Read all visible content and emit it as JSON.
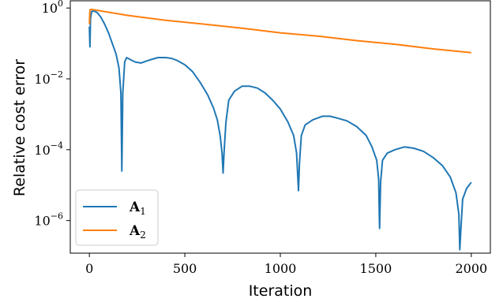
{
  "chart_data": {
    "type": "line",
    "title": "",
    "xlabel": "Iteration",
    "ylabel": "Relative cost error",
    "x_scale": "linear",
    "y_scale": "log",
    "xlim": [
      -100,
      2100
    ],
    "ylim": [
      1.2e-07,
      1.6
    ],
    "x_ticks": [
      0,
      500,
      1000,
      1500,
      2000
    ],
    "x_tick_labels": [
      "0",
      "500",
      "1000",
      "1500",
      "2000"
    ],
    "y_ticks": [
      1,
      0.01,
      0.0001,
      1e-06
    ],
    "y_tick_labels": [
      {
        "base": "10",
        "exp": "0"
      },
      {
        "base": "10",
        "exp": "−2"
      },
      {
        "base": "10",
        "exp": "−4"
      },
      {
        "base": "10",
        "exp": "−6"
      }
    ],
    "grid": false,
    "legend_position": "lower-left",
    "series": [
      {
        "name": "A",
        "subscript": "1",
        "color": "#1f77b4",
        "points": [
          [
            0,
            0.3
          ],
          [
            3,
            0.08
          ],
          [
            6,
            0.5
          ],
          [
            12,
            0.8
          ],
          [
            25,
            0.82
          ],
          [
            40,
            0.75
          ],
          [
            60,
            0.55
          ],
          [
            80,
            0.35
          ],
          [
            100,
            0.2
          ],
          [
            120,
            0.1
          ],
          [
            140,
            0.05
          ],
          [
            155,
            0.02
          ],
          [
            165,
            0.004
          ],
          [
            170,
            2.5e-05
          ],
          [
            175,
            0.004
          ],
          [
            185,
            0.03
          ],
          [
            195,
            0.04
          ],
          [
            215,
            0.035
          ],
          [
            240,
            0.03
          ],
          [
            270,
            0.028
          ],
          [
            300,
            0.032
          ],
          [
            330,
            0.036
          ],
          [
            360,
            0.04
          ],
          [
            400,
            0.04
          ],
          [
            430,
            0.038
          ],
          [
            460,
            0.033
          ],
          [
            500,
            0.025
          ],
          [
            540,
            0.016
          ],
          [
            580,
            0.008
          ],
          [
            620,
            0.0035
          ],
          [
            650,
            0.0015
          ],
          [
            670,
            0.0007
          ],
          [
            685,
            0.00025
          ],
          [
            695,
            8e-05
          ],
          [
            700,
            2.2e-05
          ],
          [
            705,
            8e-05
          ],
          [
            715,
            0.0006
          ],
          [
            730,
            0.0025
          ],
          [
            760,
            0.0045
          ],
          [
            800,
            0.0062
          ],
          [
            840,
            0.0062
          ],
          [
            880,
            0.0055
          ],
          [
            920,
            0.004
          ],
          [
            960,
            0.0025
          ],
          [
            1000,
            0.0014
          ],
          [
            1040,
            0.0006
          ],
          [
            1070,
            0.00025
          ],
          [
            1085,
            8e-05
          ],
          [
            1095,
            7e-06
          ],
          [
            1100,
            4e-05
          ],
          [
            1110,
            0.00025
          ],
          [
            1130,
            0.0005
          ],
          [
            1170,
            0.0007
          ],
          [
            1220,
            0.00088
          ],
          [
            1260,
            0.00088
          ],
          [
            1300,
            0.00078
          ],
          [
            1350,
            0.00065
          ],
          [
            1400,
            0.00045
          ],
          [
            1450,
            0.00025
          ],
          [
            1480,
            0.00012
          ],
          [
            1505,
            5e-05
          ],
          [
            1515,
            1.5e-05
          ],
          [
            1520,
            6e-07
          ],
          [
            1525,
            1.2e-05
          ],
          [
            1535,
            5e-05
          ],
          [
            1560,
            8e-05
          ],
          [
            1600,
            0.0001
          ],
          [
            1650,
            0.00012
          ],
          [
            1700,
            0.00011
          ],
          [
            1750,
            9e-05
          ],
          [
            1800,
            6e-05
          ],
          [
            1850,
            3.5e-05
          ],
          [
            1890,
            1.7e-05
          ],
          [
            1920,
            6e-06
          ],
          [
            1935,
            1.5e-06
          ],
          [
            1940,
            1.5e-07
          ],
          [
            1945,
            5e-07
          ],
          [
            1955,
            4e-06
          ],
          [
            1975,
            8e-06
          ],
          [
            2000,
            1.2e-05
          ]
        ]
      },
      {
        "name": "A",
        "subscript": "2",
        "color": "#ff7f0e",
        "points": [
          [
            0,
            0.35
          ],
          [
            3,
            0.88
          ],
          [
            10,
            0.92
          ],
          [
            200,
            0.62
          ],
          [
            400,
            0.45
          ],
          [
            600,
            0.35
          ],
          [
            800,
            0.27
          ],
          [
            1000,
            0.2
          ],
          [
            1200,
            0.16
          ],
          [
            1400,
            0.12
          ],
          [
            1600,
            0.095
          ],
          [
            1800,
            0.07
          ],
          [
            2000,
            0.055
          ]
        ]
      }
    ]
  }
}
